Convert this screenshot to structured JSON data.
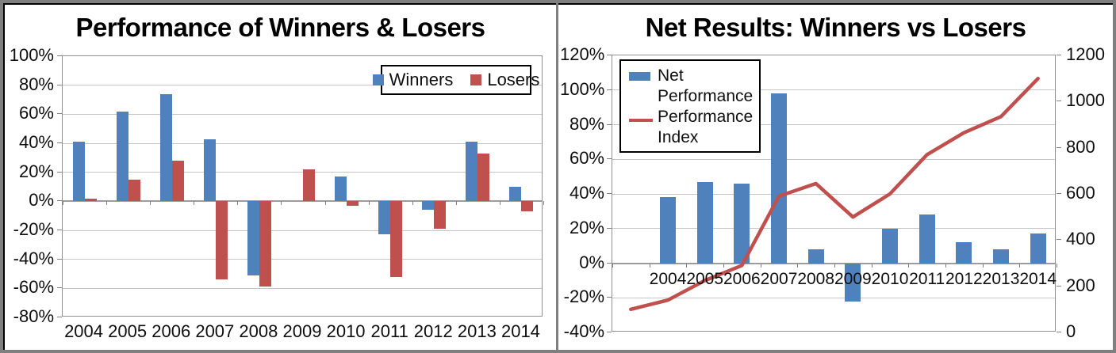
{
  "window": {
    "frame_border_color": "#7f7f7f",
    "divider_color": "#808080",
    "background": "#ffffff"
  },
  "colors": {
    "winners_blue": "#4f81bd",
    "losers_red": "#c0504d",
    "gridline": "#c6c6c6",
    "axis_line": "#9c9c9c",
    "text": "#0f0f0f",
    "legend_border": "#000000"
  },
  "chart_data": [
    {
      "type": "bar",
      "title": "Performance of Winners & Losers",
      "categories": [
        "2004",
        "2005",
        "2006",
        "2007",
        "2008",
        "2009",
        "2010",
        "2011",
        "2012",
        "2013",
        "2014"
      ],
      "series": [
        {
          "name": "Winners",
          "color": "#4f81bd",
          "values": [
            41,
            62,
            74,
            43,
            -51,
            0,
            17,
            -23,
            -6,
            41,
            10
          ]
        },
        {
          "name": "Losers",
          "color": "#c0504d",
          "values": [
            2,
            15,
            28,
            -54,
            -59,
            22,
            -3,
            -52,
            -19,
            33,
            -7
          ]
        }
      ],
      "ylabel_unit": "percent",
      "ylim": [
        -80,
        100
      ],
      "y_major_step": 20,
      "y_tick_labels": [
        "100%",
        "80%",
        "60%",
        "40%",
        "20%",
        "0%",
        "-20%",
        "-40%",
        "-60%",
        "-80%"
      ],
      "grid": true,
      "legend_position": "top-right"
    },
    {
      "type": "bar+line",
      "title": "Net Results: Winners vs Losers",
      "categories": [
        "",
        "2004",
        "2005",
        "2006",
        "2007",
        "2008",
        "2009",
        "2010",
        "2011",
        "2012",
        "2013",
        "2014"
      ],
      "series": [
        {
          "name": "Net Performance",
          "kind": "bar",
          "axis": "left",
          "color": "#4f81bd",
          "values": [
            null,
            38,
            47,
            46,
            98,
            8,
            -22,
            20,
            28,
            12,
            8,
            17
          ]
        },
        {
          "name": "Performance Index",
          "kind": "line",
          "axis": "right",
          "color": "#c0504d",
          "values": [
            100,
            140,
            225,
            290,
            590,
            645,
            500,
            600,
            770,
            865,
            935,
            1100
          ]
        }
      ],
      "left_ylim": [
        -40,
        120
      ],
      "left_tick_labels": [
        "120%",
        "100%",
        "80%",
        "60%",
        "40%",
        "20%",
        "0%",
        "-20%",
        "-40%"
      ],
      "right_ylim": [
        0,
        1200
      ],
      "right_tick_labels": [
        "1200",
        "1000",
        "800",
        "600",
        "400",
        "200",
        "0"
      ],
      "grid": true,
      "legend_position": "top-left"
    }
  ]
}
